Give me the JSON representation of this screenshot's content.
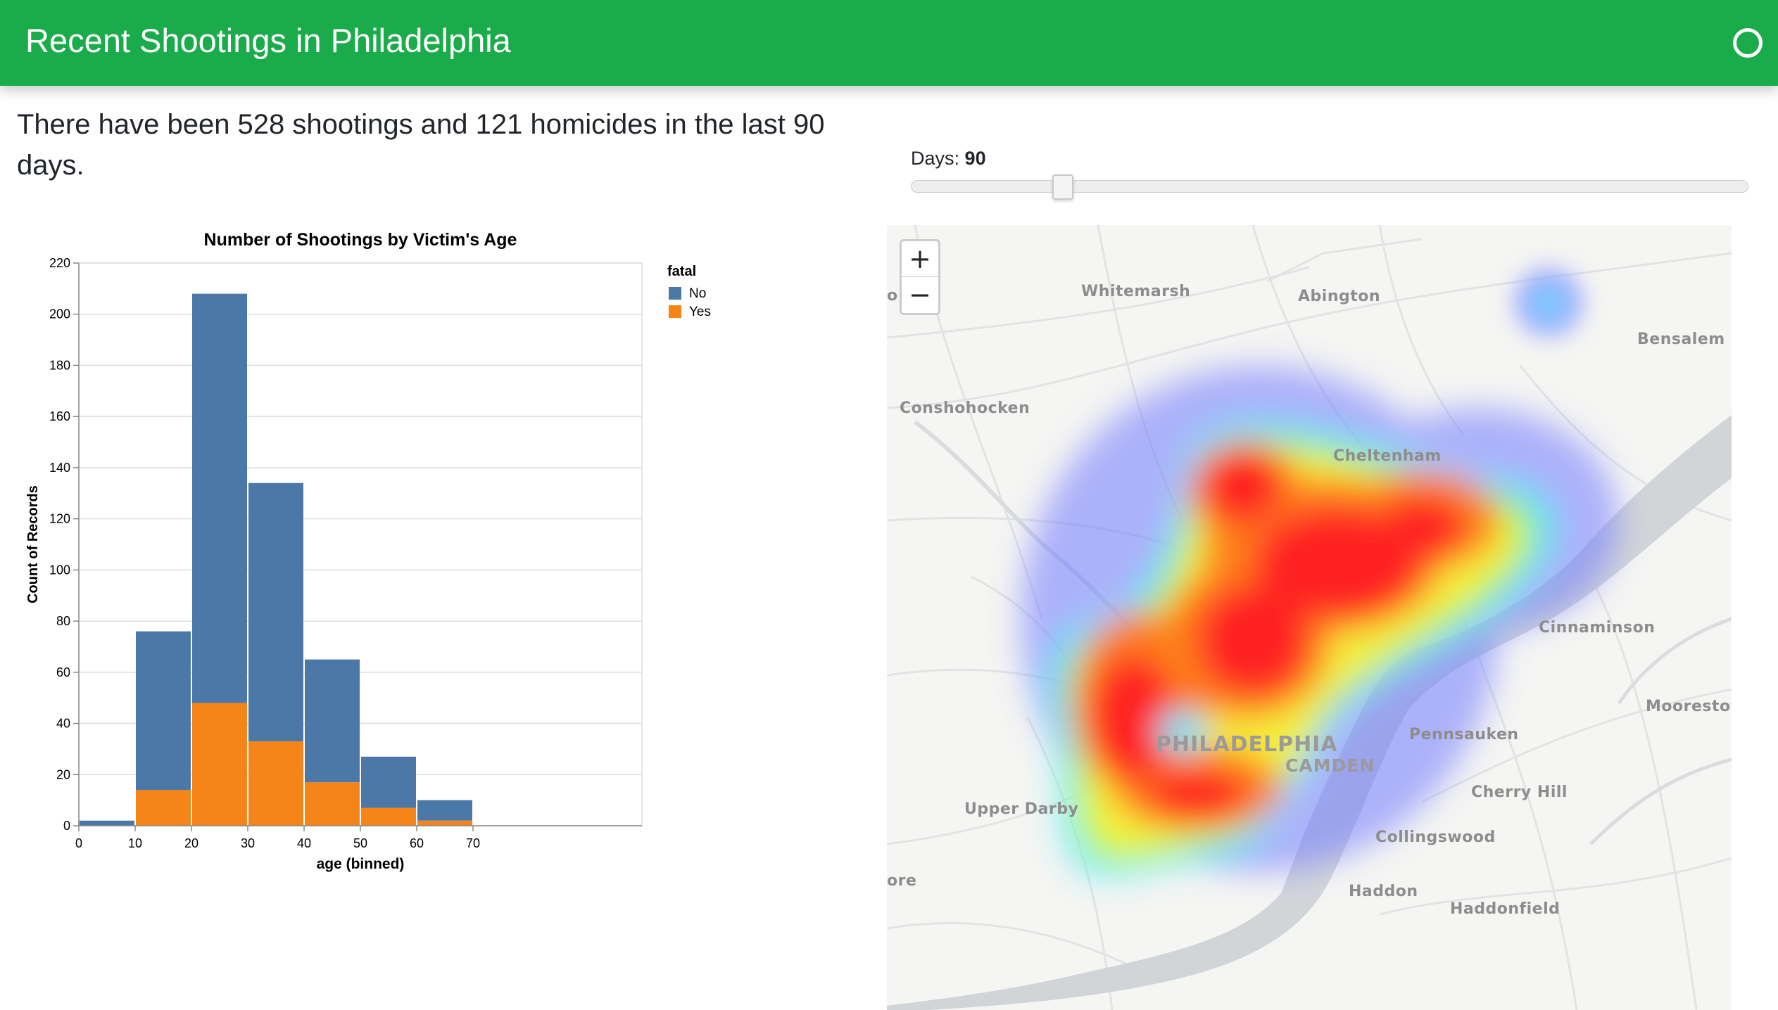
{
  "app": {
    "title": "Recent Shootings in Philadelphia"
  },
  "summary": {
    "text": "There have been 528 shootings and 121 homicides in the last 90 days."
  },
  "slider": {
    "label": "Days:",
    "value": "90",
    "min": 1,
    "max": 365,
    "fraction": 0.18
  },
  "chart_data": {
    "type": "bar",
    "title": "Number of Shootings by Victim's Age",
    "xlabel": "age (binned)",
    "ylabel": "Count of Records",
    "xlim": [
      0,
      100
    ],
    "ylim": [
      0,
      220
    ],
    "y_ticks": [
      0,
      20,
      40,
      60,
      80,
      100,
      120,
      140,
      160,
      180,
      200,
      220
    ],
    "x_ticks": [
      0,
      10,
      20,
      30,
      40,
      50,
      60,
      70
    ],
    "bins": [
      [
        0,
        10
      ],
      [
        10,
        20
      ],
      [
        20,
        30
      ],
      [
        30,
        40
      ],
      [
        40,
        50
      ],
      [
        50,
        60
      ],
      [
        60,
        70
      ]
    ],
    "stacked": true,
    "legend_title": "fatal",
    "legend_position": "top-right",
    "grid": true,
    "series": [
      {
        "name": "Yes",
        "color": "#f58518",
        "values": [
          0,
          14,
          48,
          33,
          17,
          7,
          2
        ]
      },
      {
        "name": "No",
        "color": "#4c78a8",
        "values": [
          2,
          62,
          160,
          101,
          48,
          20,
          8
        ]
      }
    ],
    "legend_order": [
      "No",
      "Yes"
    ]
  },
  "map": {
    "zoom_in": "+",
    "zoom_out": "−",
    "labels": {
      "whitemarsh": "Whitemarsh",
      "abington": "Abington",
      "bensalem": "Bensalem",
      "conshohocken": "Conshohocken",
      "cheltenham": "Cheltenham",
      "cinnaminson": "Cinnaminson",
      "moorestown": "Moorestow",
      "pennsauken": "Pennsauken",
      "philadelphia": "PHILADELPHIA",
      "camden": "CAMDEN",
      "upper_darby": "Upper Darby",
      "cherry_hill": "Cherry Hill",
      "collingswood": "Collingswood",
      "haddon": "Haddon",
      "haddonfield": "Haddonfield",
      "edge_left": "ore",
      "edge_top": "o"
    },
    "colors": {
      "water": "#cfd3d6",
      "land": "#f5f5f3",
      "roads": "#e2e2e2"
    }
  }
}
